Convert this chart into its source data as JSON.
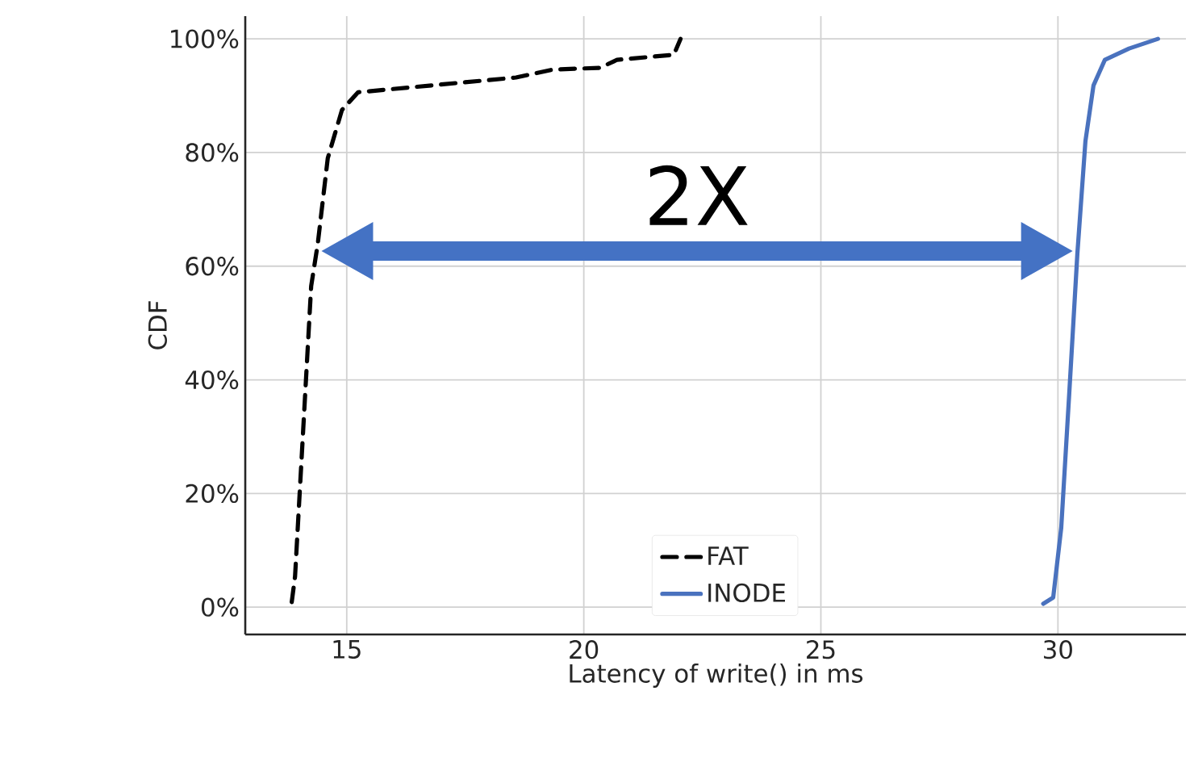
{
  "chart_data": {
    "type": "line",
    "xlabel": "Latency of write() in ms",
    "ylabel": "CDF",
    "series": [
      {
        "name": "FAT",
        "color": "#000000",
        "line_style": "dashed",
        "x": [
          13.84,
          13.91,
          14.25,
          14.39,
          14.6,
          14.9,
          15.24,
          18.57,
          19.35,
          20.34,
          20.7,
          21.9,
          22.04
        ],
        "values": [
          0.9,
          5.4,
          56.5,
          64,
          79,
          87.5,
          90.6,
          93.2,
          94.6,
          94.9,
          96.3,
          97.2,
          100
        ]
      },
      {
        "name": "INODE",
        "color": "#4a72be",
        "line_style": "solid",
        "x": [
          29.69,
          29.9,
          30.07,
          30.24,
          30.41,
          30.58,
          30.75,
          30.99,
          31.5,
          32.11
        ],
        "values": [
          0.6,
          1.7,
          14,
          37.8,
          62.2,
          82,
          91.8,
          96.3,
          98.3,
          100
        ]
      }
    ],
    "annotations": [
      "2X"
    ],
    "xlim": [
      12.86,
      32.7
    ],
    "ylim": [
      -4.8,
      104
    ],
    "xticks": [
      15,
      20,
      25,
      30
    ],
    "yticks": [
      {
        "value": 0,
        "label": "0%"
      },
      {
        "value": 20,
        "label": "20%"
      },
      {
        "value": 40,
        "label": "40%"
      },
      {
        "value": 60,
        "label": "60%"
      },
      {
        "value": 80,
        "label": "80%"
      },
      {
        "value": 100,
        "label": "100%"
      }
    ],
    "grid": true,
    "legend": "bottom"
  }
}
